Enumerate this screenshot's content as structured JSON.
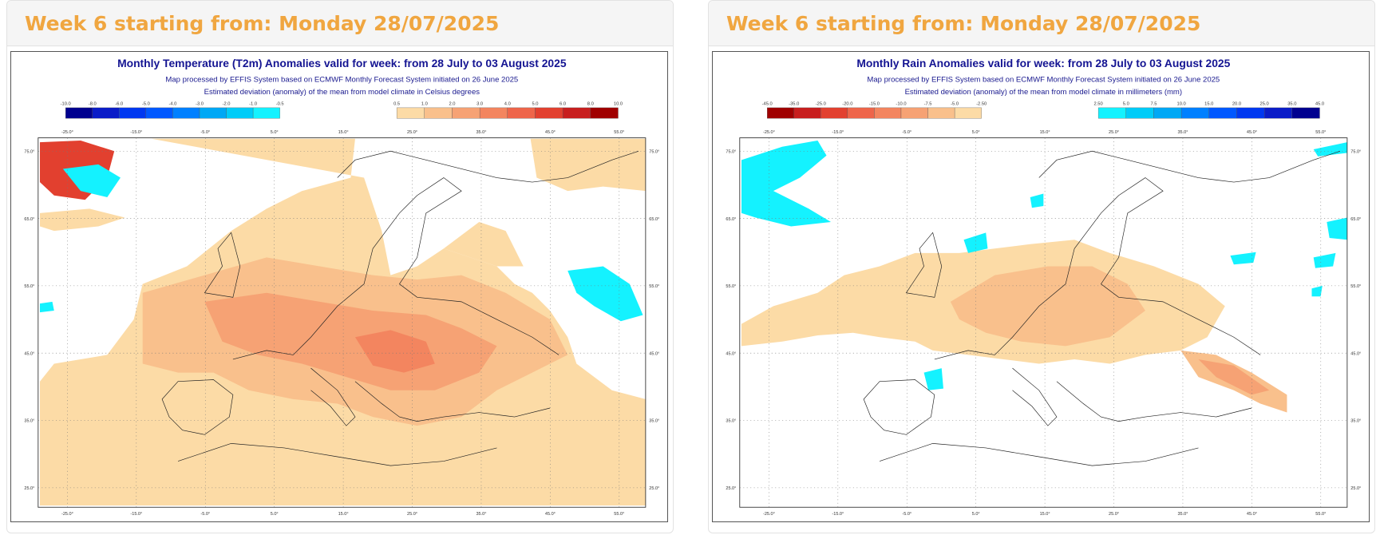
{
  "panels": [
    {
      "header": "Week 6 starting from: Monday 28/07/2025",
      "map_title": "Monthly Temperature (T2m) Anomalies valid for week: from 28 July to 03 August 2025",
      "subtitle1": "Map processed by EFFIS System based on ECMWF Monthly Forecast System initiated on 26 June 2025",
      "subtitle2": "Estimated deviation (anomaly) of the mean from model climate in Celsius degrees",
      "legend_neg": {
        "labels": [
          "-10.0",
          "-8.0",
          "-6.0",
          "-5.0",
          "-4.0",
          "-3.0",
          "-2.0",
          "-1.0",
          "-0.5"
        ],
        "colors": [
          "#00008f",
          "#0a1cc8",
          "#0038f0",
          "#0058ff",
          "#0080ff",
          "#00a8f5",
          "#00ccf8",
          "#14f2ff"
        ]
      },
      "legend_pos": {
        "labels": [
          "0.5",
          "1.0",
          "2.0",
          "3.0",
          "4.0",
          "5.0",
          "6.0",
          "8.0",
          "10.0"
        ],
        "colors": [
          "#fcdba6",
          "#f9c08c",
          "#f6a274",
          "#f3855f",
          "#ee654a",
          "#e2402f",
          "#c81e1e",
          "#a00000"
        ]
      }
    },
    {
      "header": "Week 6 starting from: Monday 28/07/2025",
      "map_title": "Monthly Rain Anomalies valid for week: from 28 July to 03 August 2025",
      "subtitle1": "Map processed by EFFIS System based on ECMWF Monthly Forecast System initiated on 26 June 2025",
      "subtitle2": "Estimated deviation (anomaly) of the mean from model climate in millimeters (mm)",
      "legend_neg": {
        "labels": [
          "-45.0",
          "-35.0",
          "-25.0",
          "-20.0",
          "-15.0",
          "-10.0",
          "-7.5",
          "-5.0",
          "-2.50"
        ],
        "colors": [
          "#a00000",
          "#c81e1e",
          "#e2402f",
          "#ee654a",
          "#f3855f",
          "#f6a274",
          "#f9c08c",
          "#fcdba6"
        ]
      },
      "legend_pos": {
        "labels": [
          "2.50",
          "5.0",
          "7.5",
          "10.0",
          "15.0",
          "20.0",
          "25.0",
          "35.0",
          "45.0"
        ],
        "colors": [
          "#14f2ff",
          "#00ccf8",
          "#00a8f5",
          "#0080ff",
          "#0058ff",
          "#0038f0",
          "#0a1cc8",
          "#00008f"
        ]
      }
    }
  ],
  "axes": {
    "longitudes": [
      "-25.0°",
      "-15.0°",
      "-5.0°",
      "5.0°",
      "15.0°",
      "25.0°",
      "35.0°",
      "45.0°",
      "55.0°"
    ],
    "latitudes": [
      "75.0°",
      "65.0°",
      "55.0°",
      "45.0°",
      "35.0°",
      "25.0°"
    ]
  }
}
